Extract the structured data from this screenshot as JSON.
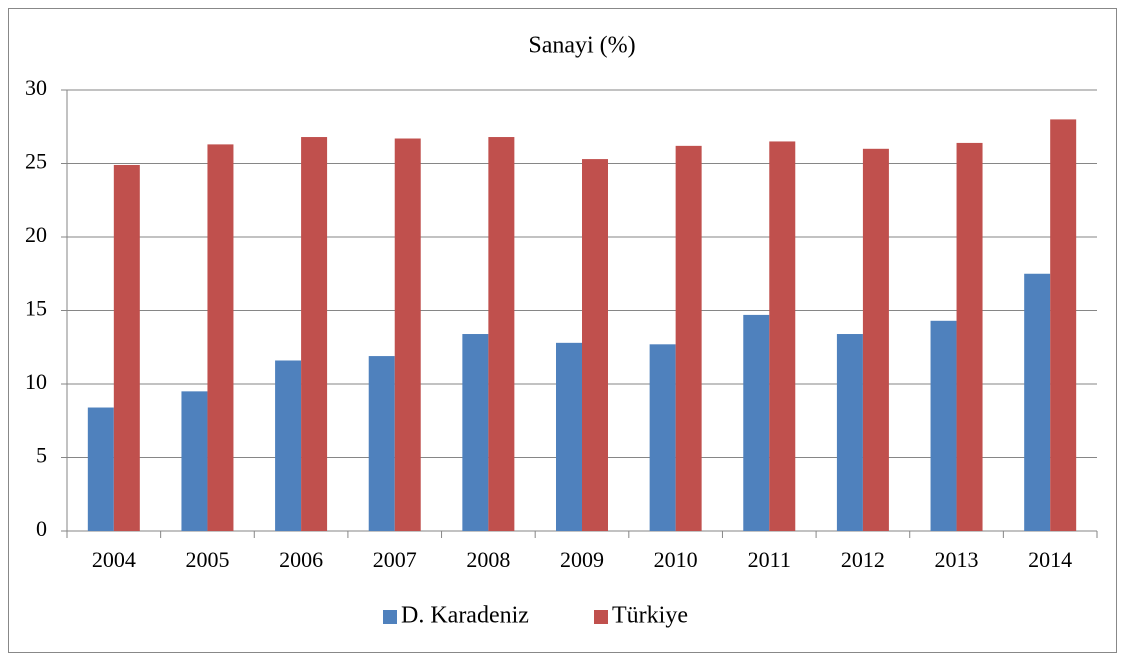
{
  "chart_data": {
    "type": "bar",
    "title": "Sanayi (%)",
    "categories": [
      "2004",
      "2005",
      "2006",
      "2007",
      "2008",
      "2009",
      "2010",
      "2011",
      "2012",
      "2013",
      "2014"
    ],
    "series": [
      {
        "name": "D. Karadeniz",
        "color": "#4f81bd",
        "values": [
          8.4,
          9.5,
          11.6,
          11.9,
          13.4,
          12.8,
          12.7,
          14.7,
          13.4,
          14.3,
          17.5
        ]
      },
      {
        "name": "Türkiye",
        "color": "#c0504d",
        "values": [
          24.9,
          26.3,
          26.8,
          26.7,
          26.8,
          25.3,
          26.2,
          26.5,
          26.0,
          26.4,
          28.0
        ]
      }
    ],
    "ylim": [
      0,
      30
    ],
    "yticks": [
      0,
      5,
      10,
      15,
      20,
      25,
      30
    ],
    "grid": true,
    "legend": "bottom"
  }
}
